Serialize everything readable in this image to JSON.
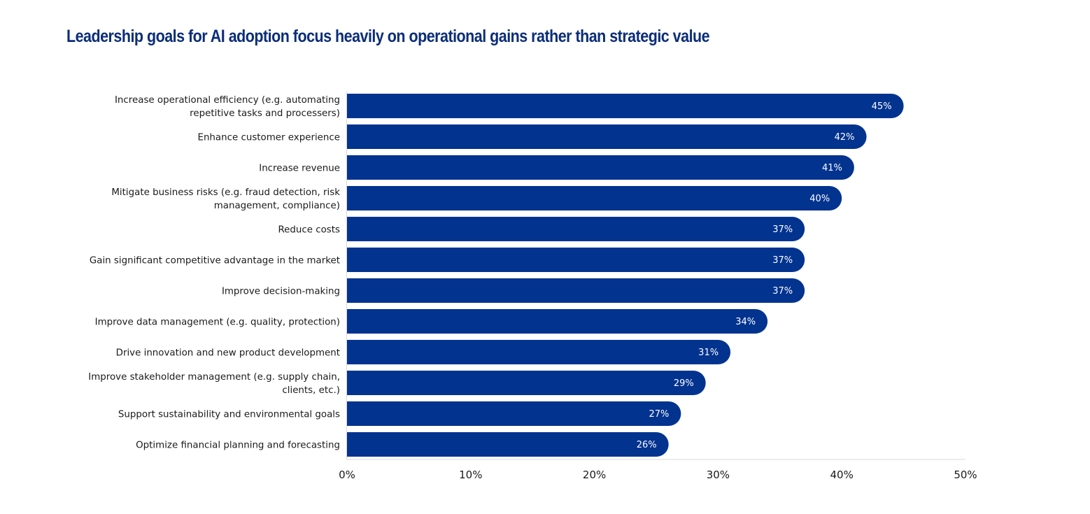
{
  "chart_data": {
    "type": "bar",
    "orientation": "horizontal",
    "title": "Leadership goals for AI adoption focus heavily on operational gains rather than strategic value",
    "categories": [
      [
        "Increase operational efficiency (e.g. automating",
        "repetitive tasks and processers)"
      ],
      [
        "Enhance customer experience"
      ],
      [
        "Increase revenue"
      ],
      [
        "Mitigate business risks (e.g. fraud detection, risk",
        "management, compliance)"
      ],
      [
        "Reduce costs"
      ],
      [
        "Gain significant competitive advantage in the market"
      ],
      [
        "Improve decision-making"
      ],
      [
        "Improve data management (e.g. quality, protection)"
      ],
      [
        "Drive innovation and new product development"
      ],
      [
        "Improve stakeholder management (e.g. supply chain,",
        "clients, etc.)"
      ],
      [
        "Support sustainability and environmental goals"
      ],
      [
        "Optimize financial planning and forecasting"
      ]
    ],
    "values": [
      45,
      42,
      41,
      40,
      37,
      37,
      37,
      34,
      31,
      29,
      27,
      26
    ],
    "value_labels": [
      "45%",
      "42%",
      "41%",
      "40%",
      "37%",
      "37%",
      "37%",
      "34%",
      "31%",
      "29%",
      "27%",
      "26%"
    ],
    "xlim": [
      0,
      50
    ],
    "xticks": [
      0,
      10,
      20,
      30,
      40,
      50
    ],
    "xtick_labels": [
      "0%",
      "10%",
      "20%",
      "30%",
      "40%",
      "50%"
    ],
    "xlabel": "",
    "ylabel": "",
    "grid": false,
    "legend": "none",
    "bar_color": "#02338f",
    "axis_color": "#d9d9d9"
  }
}
